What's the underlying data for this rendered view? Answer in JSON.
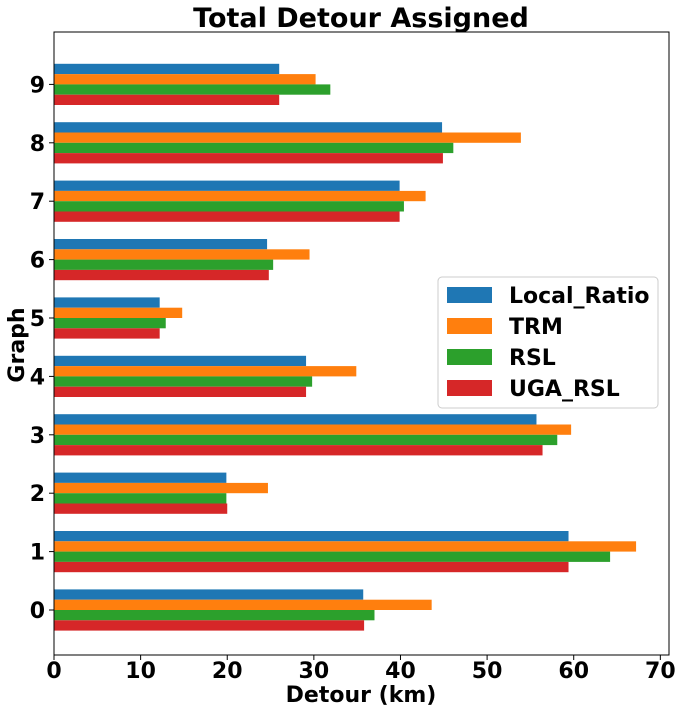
{
  "chart_data": {
    "type": "bar",
    "orientation": "horizontal",
    "title": "Total Detour Assigned",
    "xlabel": "Detour (km)",
    "ylabel": "Graph",
    "categories": [
      "0",
      "1",
      "2",
      "3",
      "4",
      "5",
      "6",
      "7",
      "8",
      "9"
    ],
    "xlim": [
      0,
      71
    ],
    "xticks": [
      0,
      10,
      20,
      30,
      40,
      50,
      60,
      70
    ],
    "grid": false,
    "legend_position": "center-right",
    "series": [
      {
        "name": "Local_Ratio",
        "color": "#1f77b4",
        "values": [
          35.7,
          59.4,
          19.9,
          55.7,
          29.1,
          12.2,
          24.6,
          39.9,
          44.8,
          26.0
        ]
      },
      {
        "name": "TRM",
        "color": "#ff7f0e",
        "values": [
          43.6,
          67.2,
          24.7,
          59.7,
          34.9,
          14.8,
          29.5,
          42.9,
          53.9,
          30.2
        ]
      },
      {
        "name": "RSL",
        "color": "#2ca02c",
        "values": [
          37.0,
          64.2,
          19.9,
          58.1,
          29.8,
          12.9,
          25.3,
          40.4,
          46.1,
          31.9
        ]
      },
      {
        "name": "UGA_RSL",
        "color": "#d62728",
        "values": [
          35.8,
          59.4,
          20.0,
          56.4,
          29.1,
          12.2,
          24.8,
          39.9,
          44.9,
          26.0
        ]
      }
    ]
  }
}
